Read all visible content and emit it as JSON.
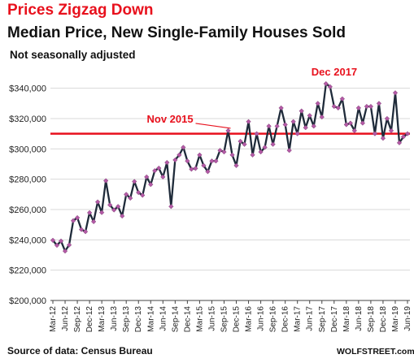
{
  "title": "Prices Zigzag Down",
  "subtitle": "Median Price, New Single-Family Houses Sold",
  "note": "Not seasonally adjusted",
  "source": "Source of data: Census Bureau",
  "brand": "WOLFSTREET.com",
  "colors": {
    "title": "#e8111d",
    "line": "#1f2b3a",
    "marker": "#b45aa6",
    "refline": "#e8111d",
    "grid": "#d9d9d9"
  },
  "chart_data": {
    "type": "line",
    "title": "Median Price, New Single-Family Houses Sold",
    "xlabel": "",
    "ylabel": "",
    "ylim": [
      200000,
      350000
    ],
    "yticks": [
      "$200,000",
      "$220,000",
      "$240,000",
      "$260,000",
      "$280,000",
      "$300,000",
      "$320,000",
      "$340,000"
    ],
    "grid": "horizontal",
    "xticks": [
      "Mar-12",
      "Jun-12",
      "Sep-12",
      "Dec-12",
      "Mar-13",
      "Jun-13",
      "Sep-13",
      "Dec-13",
      "Mar-14",
      "Jun-14",
      "Sep-14",
      "Dec-14",
      "Mar-15",
      "Jun-15",
      "Sep-15",
      "Dec-15",
      "Mar-16",
      "Jun-16",
      "Sep-16",
      "Dec-16",
      "Mar-17",
      "Jun-17",
      "Sep-17",
      "Dec-17",
      "Mar-18",
      "Jun-18",
      "Sep-18",
      "Dec-18",
      "Mar-19",
      "Jun-19"
    ],
    "x": [
      "2012-03",
      "2012-04",
      "2012-05",
      "2012-06",
      "2012-07",
      "2012-08",
      "2012-09",
      "2012-10",
      "2012-11",
      "2012-12",
      "2013-01",
      "2013-02",
      "2013-03",
      "2013-04",
      "2013-05",
      "2013-06",
      "2013-07",
      "2013-08",
      "2013-09",
      "2013-10",
      "2013-11",
      "2013-12",
      "2014-01",
      "2014-02",
      "2014-03",
      "2014-04",
      "2014-05",
      "2014-06",
      "2014-07",
      "2014-08",
      "2014-09",
      "2014-10",
      "2014-11",
      "2014-12",
      "2015-01",
      "2015-02",
      "2015-03",
      "2015-04",
      "2015-05",
      "2015-06",
      "2015-07",
      "2015-08",
      "2015-09",
      "2015-10",
      "2015-11",
      "2015-12",
      "2016-01",
      "2016-02",
      "2016-03",
      "2016-04",
      "2016-05",
      "2016-06",
      "2016-07",
      "2016-08",
      "2016-09",
      "2016-10",
      "2016-11",
      "2016-12",
      "2017-01",
      "2017-02",
      "2017-03",
      "2017-04",
      "2017-05",
      "2017-06",
      "2017-07",
      "2017-08",
      "2017-09",
      "2017-10",
      "2017-11",
      "2017-12",
      "2018-01",
      "2018-02",
      "2018-03",
      "2018-04",
      "2018-05",
      "2018-06",
      "2018-07",
      "2018-08",
      "2018-09",
      "2018-10",
      "2018-11",
      "2018-12",
      "2019-01",
      "2019-02",
      "2019-03",
      "2019-04",
      "2019-05",
      "2019-06"
    ],
    "series": [
      {
        "values": [
          239700,
          236400,
          239200,
          232600,
          236600,
          252600,
          254600,
          246800,
          245400,
          257900,
          252000,
          265000,
          258000,
          279000,
          263000,
          259700,
          262000,
          255700,
          270000,
          267500,
          278500,
          271200,
          269400,
          281500,
          276500,
          285600,
          287300,
          281500,
          291000,
          262000,
          292700,
          296000,
          301000,
          292000,
          286600,
          287100,
          296000,
          289000,
          285000,
          292000,
          292000,
          299000,
          298000,
          312000,
          296000,
          289000,
          305000,
          303000,
          318000,
          296000,
          310000,
          298000,
          301000,
          315000,
          303000,
          315000,
          327000,
          316000,
          299000,
          318000,
          310000,
          325000,
          314000,
          322000,
          315000,
          330000,
          321000,
          343000,
          341000,
          328000,
          327000,
          333000,
          316000,
          317000,
          312000,
          327000,
          317000,
          328000,
          328000,
          310000,
          330000,
          307000,
          320000,
          312000,
          337000,
          304000,
          308000,
          310000
        ]
      }
    ],
    "reference_line": {
      "value": 310000,
      "color": "#e8111d"
    },
    "annotations": [
      {
        "text": "Nov 2015",
        "x": "2015-11",
        "y": 312000
      },
      {
        "text": "Dec 2017",
        "x": "2017-12",
        "y": 343000
      }
    ]
  }
}
